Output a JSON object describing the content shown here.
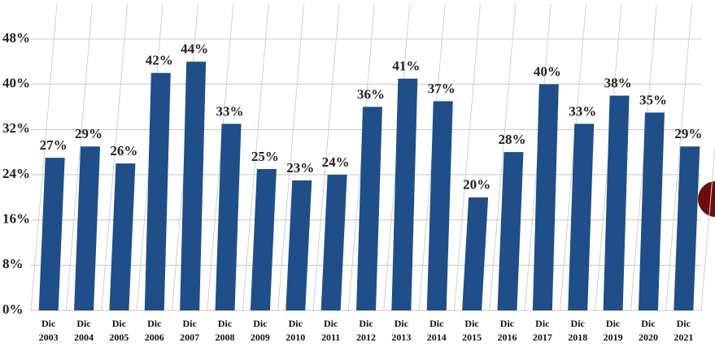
{
  "chart_data": {
    "type": "bar",
    "categories": [
      "Dic 2003",
      "Dic 2004",
      "Dic 2005",
      "Dic 2006",
      "Dic 2007",
      "Dic 2008",
      "Dic 2009",
      "Dic 2010",
      "Dic 2011",
      "Dic 2012",
      "Dic 2013",
      "Dic 2014",
      "Dic 2015",
      "Dic 2016",
      "Dic 2017",
      "Dic 2018",
      "Dic 2019",
      "Dic 2020",
      "Dic 2021"
    ],
    "values": [
      27,
      29,
      26,
      42,
      44,
      33,
      25,
      23,
      24,
      36,
      41,
      37,
      20,
      28,
      40,
      33,
      38,
      35,
      29
    ],
    "value_labels": [
      "27%",
      "29%",
      "26%",
      "42%",
      "44%",
      "33%",
      "25%",
      "23%",
      "24%",
      "36%",
      "41%",
      "37%",
      "20%",
      "28%",
      "40%",
      "33%",
      "38%",
      "35%",
      "29%"
    ],
    "color": "#1f4e89",
    "ylim": [
      0,
      48
    ],
    "yticks": [
      {
        "value": 0,
        "label": "0%"
      },
      {
        "value": 8,
        "label": "8%"
      },
      {
        "value": 16,
        "label": "16%"
      },
      {
        "value": 24,
        "label": "24%"
      },
      {
        "value": 32,
        "label": "32%"
      },
      {
        "value": 40,
        "label": "40%"
      },
      {
        "value": 48,
        "label": "48%"
      }
    ],
    "grid": true
  }
}
